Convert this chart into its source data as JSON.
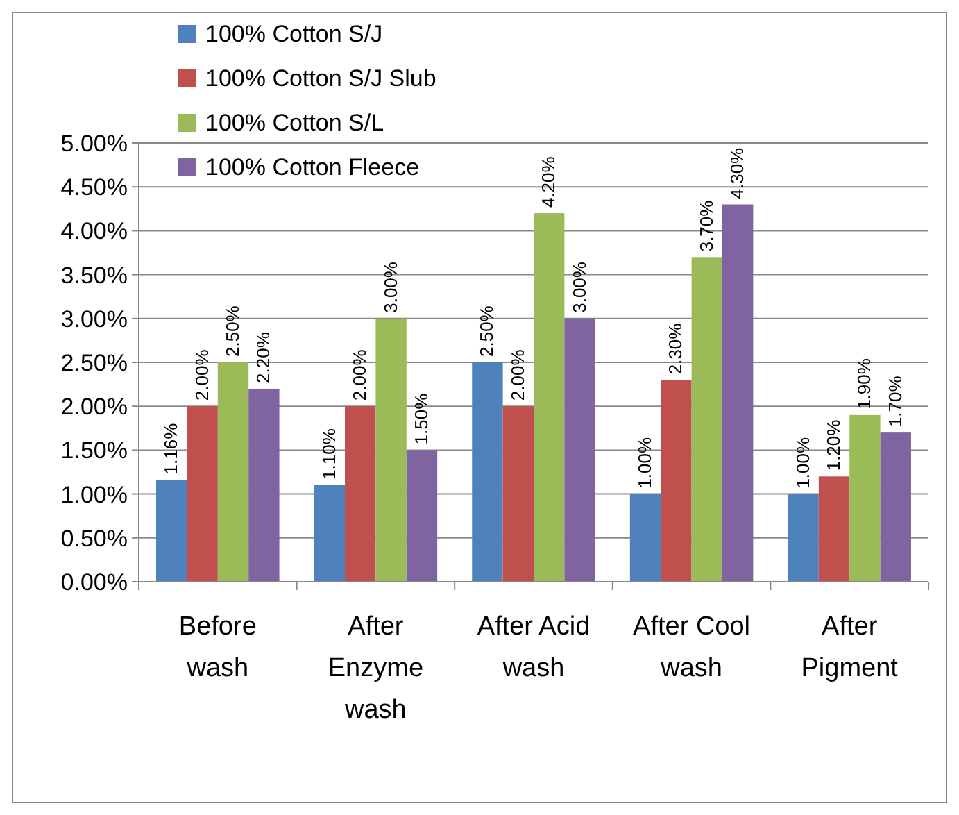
{
  "chart_data": {
    "type": "bar",
    "categories": [
      "Before wash",
      "After Enzyme wash",
      "After Acid wash",
      "After Cool wash",
      "After Pigment"
    ],
    "series": [
      {
        "name": "100% Cotton S/J",
        "color": "#4f81bd",
        "values": [
          1.16,
          1.1,
          2.5,
          1.0,
          1.0
        ],
        "value_labels": [
          "1.16%",
          "1.10%",
          "2.50%",
          "1.00%",
          "1.00%"
        ]
      },
      {
        "name": "100% Cotton S/J Slub",
        "color": "#c0504d",
        "values": [
          2.0,
          2.0,
          2.0,
          2.3,
          1.2
        ],
        "value_labels": [
          "2.00%",
          "2.00%",
          "2.00%",
          "2.30%",
          "1.20%"
        ]
      },
      {
        "name": "100% Cotton S/L",
        "color": "#9bbb59",
        "values": [
          2.5,
          3.0,
          4.2,
          3.7,
          1.9
        ],
        "value_labels": [
          "2.50%",
          "3.00%",
          "4.20%",
          "3.70%",
          "1.90%"
        ]
      },
      {
        "name": "100% Cotton Fleece",
        "color": "#8064a2",
        "values": [
          2.2,
          1.5,
          3.0,
          4.3,
          1.7
        ],
        "value_labels": [
          "2.20%",
          "1.50%",
          "3.00%",
          "4.30%",
          "1.70%"
        ]
      }
    ],
    "ylim": [
      0,
      5
    ],
    "yticks": [
      {
        "value": 0,
        "label": "0.00%"
      },
      {
        "value": 0.5,
        "label": "0.50%"
      },
      {
        "value": 1,
        "label": "1.00%"
      },
      {
        "value": 1.5,
        "label": "1.50%"
      },
      {
        "value": 2,
        "label": "2.00%"
      },
      {
        "value": 2.5,
        "label": "2.50%"
      },
      {
        "value": 3,
        "label": "3.00%"
      },
      {
        "value": 3.5,
        "label": "3.50%"
      },
      {
        "value": 4,
        "label": "4.00%"
      },
      {
        "value": 4.5,
        "label": "4.50%"
      },
      {
        "value": 5,
        "label": "5.00%"
      }
    ],
    "grid": "y",
    "legend": "top left"
  }
}
